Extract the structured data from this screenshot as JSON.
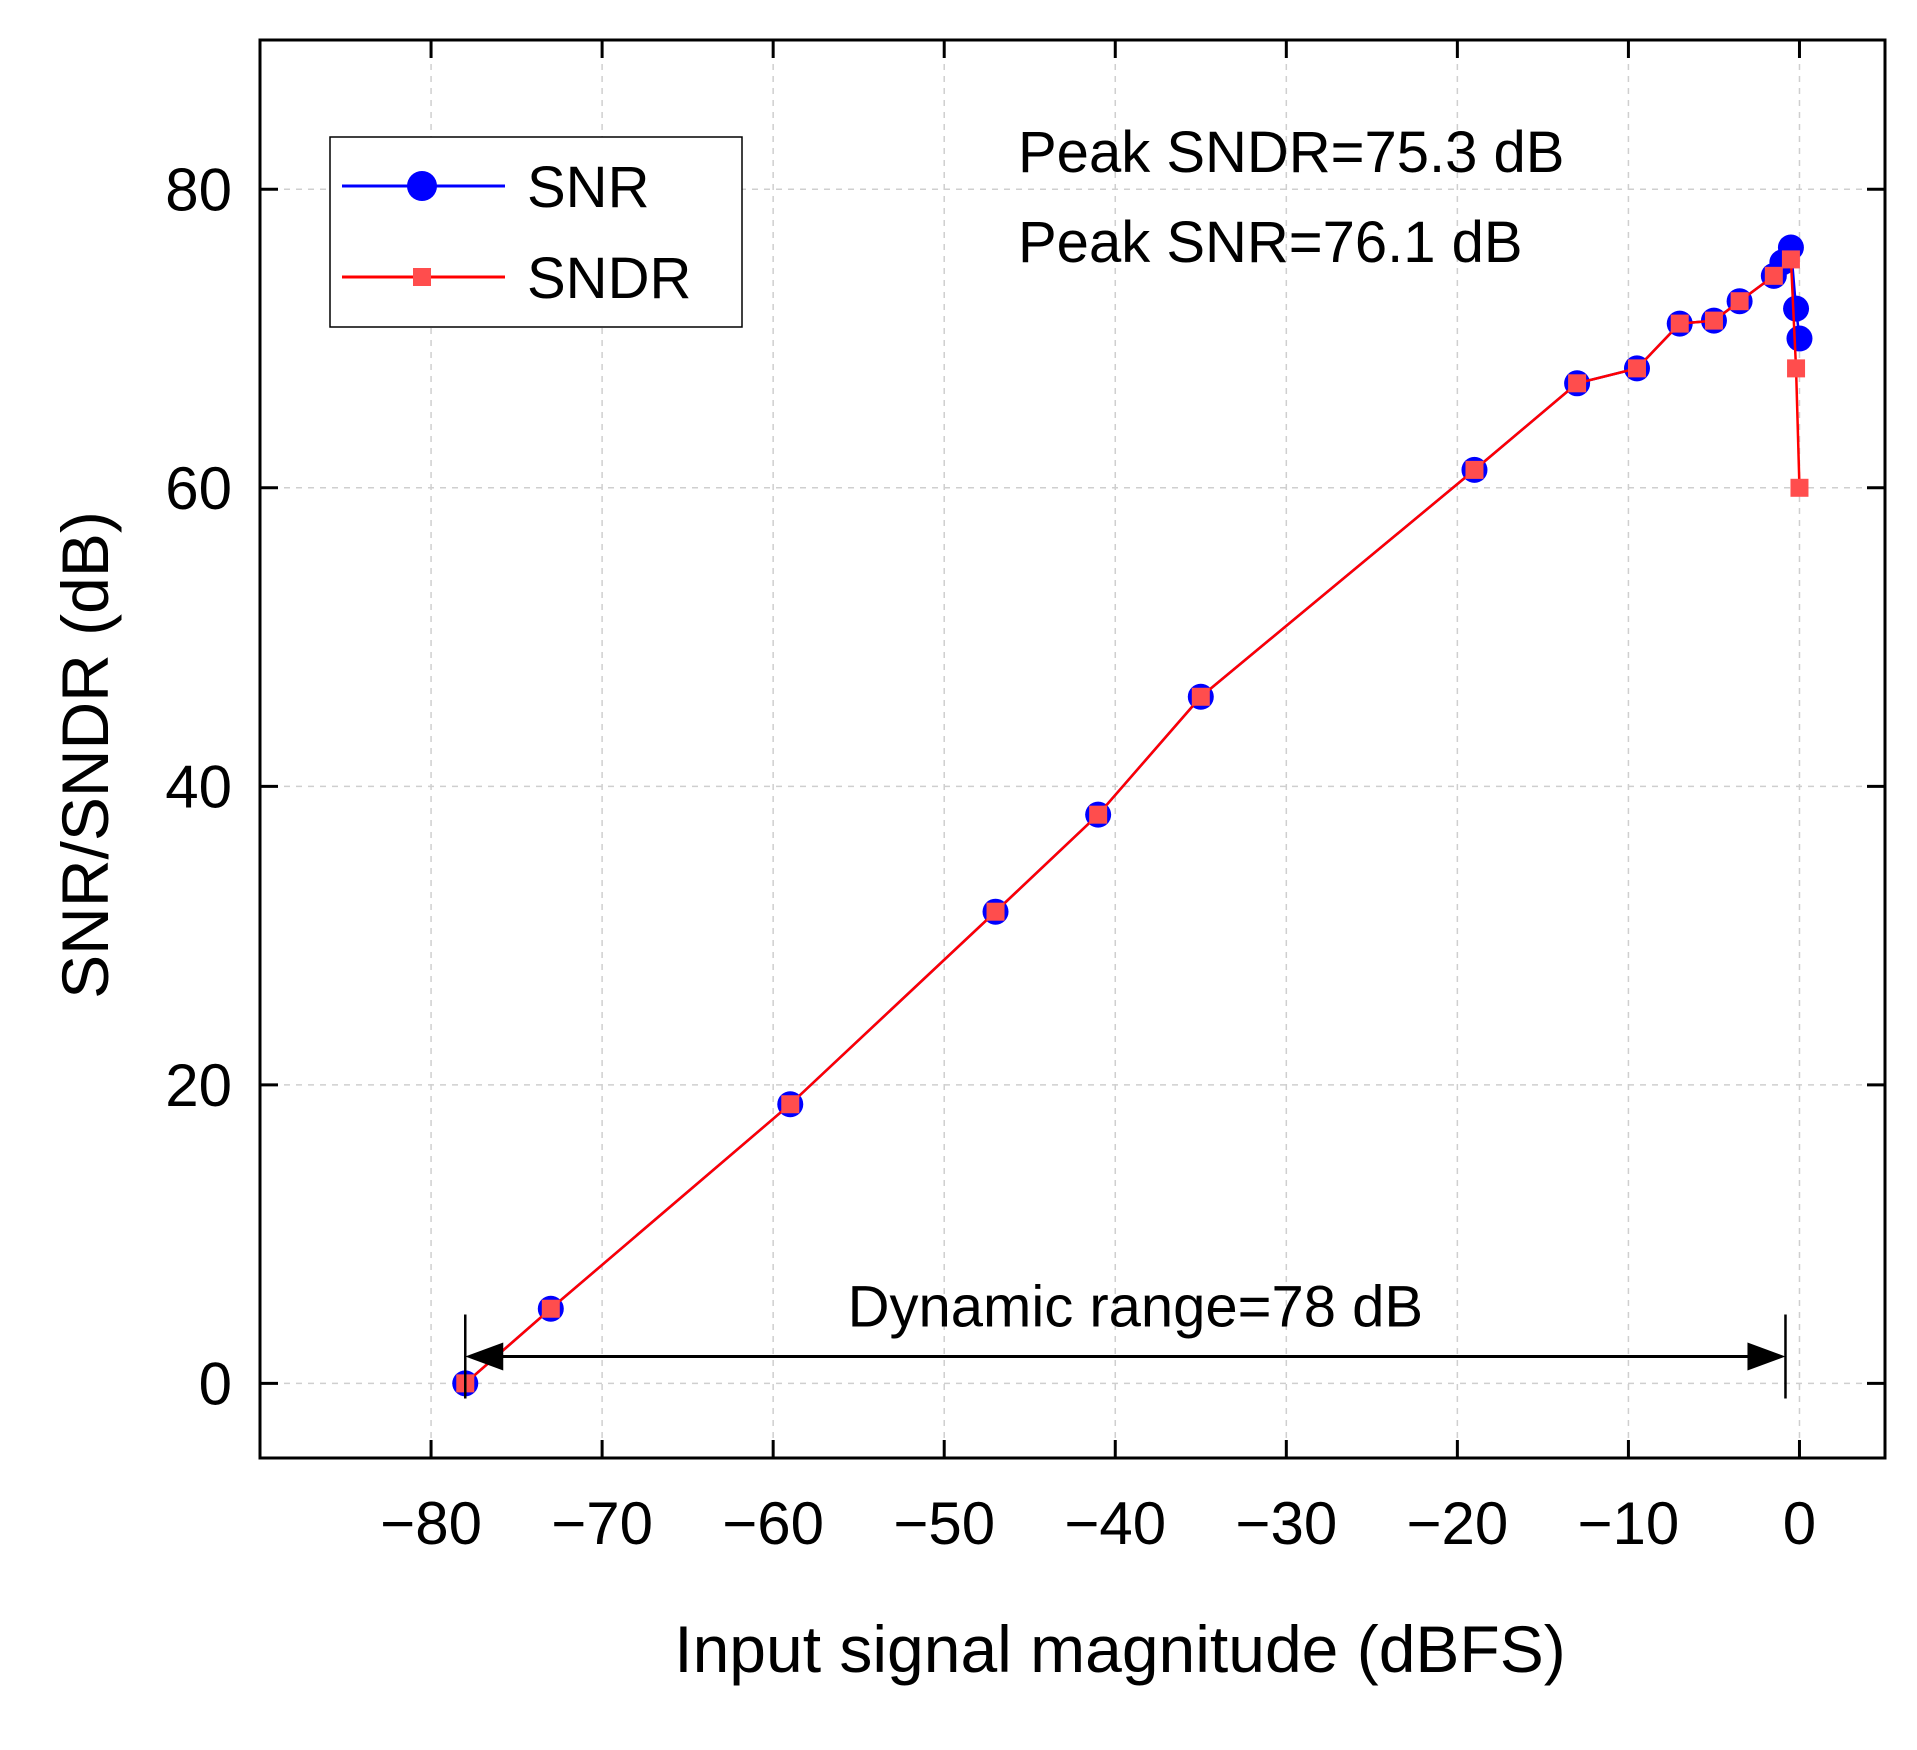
{
  "chart_data": {
    "type": "line",
    "title": "",
    "xlabel": "Input signal magnitude (dBFS)",
    "ylabel": "SNR/SNDR (dB)",
    "xlim": [
      -90,
      5
    ],
    "ylim": [
      -5,
      90
    ],
    "x_ticks": [
      -80,
      -70,
      -60,
      -50,
      -40,
      -30,
      -20,
      -10,
      0
    ],
    "x_tick_labels": [
      "−80",
      "−70",
      "−60",
      "−50",
      "−40",
      "−30",
      "−20",
      "−10",
      "0"
    ],
    "y_ticks": [
      0,
      20,
      40,
      60,
      80
    ],
    "y_tick_labels": [
      "0",
      "20",
      "40",
      "60",
      "80"
    ],
    "grid": true,
    "legend_position": "top-left",
    "series": [
      {
        "name": "SNR",
        "color": "#0000ff",
        "marker": "circle",
        "points": [
          [
            -78,
            0
          ],
          [
            -73,
            5
          ],
          [
            -59,
            18.7
          ],
          [
            -47,
            31.6
          ],
          [
            -41,
            38.1
          ],
          [
            -35,
            46
          ],
          [
            -19,
            61.2
          ],
          [
            -13,
            67
          ],
          [
            -9.5,
            68
          ],
          [
            -7,
            71
          ],
          [
            -5,
            71.2
          ],
          [
            -3.5,
            72.5
          ],
          [
            -1.5,
            74.2
          ],
          [
            -1,
            75.1
          ],
          [
            -0.5,
            76.1
          ],
          [
            -0.2,
            72
          ],
          [
            0,
            70
          ]
        ]
      },
      {
        "name": "SNDR",
        "color": "#ff0000",
        "marker": "square",
        "points": [
          [
            -78,
            0
          ],
          [
            -73,
            5
          ],
          [
            -59,
            18.7
          ],
          [
            -47,
            31.6
          ],
          [
            -41,
            38.1
          ],
          [
            -35,
            46
          ],
          [
            -19,
            61.2
          ],
          [
            -13,
            67
          ],
          [
            -9.5,
            68
          ],
          [
            -7,
            71
          ],
          [
            -5,
            71.2
          ],
          [
            -3.5,
            72.5
          ],
          [
            -1.5,
            74.2
          ],
          [
            -0.5,
            75.3
          ],
          [
            -0.2,
            68
          ],
          [
            0,
            60
          ]
        ]
      }
    ],
    "annotations": {
      "peak_sndr": "Peak SNDR=75.3 dB",
      "peak_snr": "Peak SNR=76.1 dB",
      "dynamic_range": {
        "label": "Dynamic range=78 dB",
        "x_start": -78,
        "x_end": 0,
        "y": 1.8
      }
    }
  }
}
